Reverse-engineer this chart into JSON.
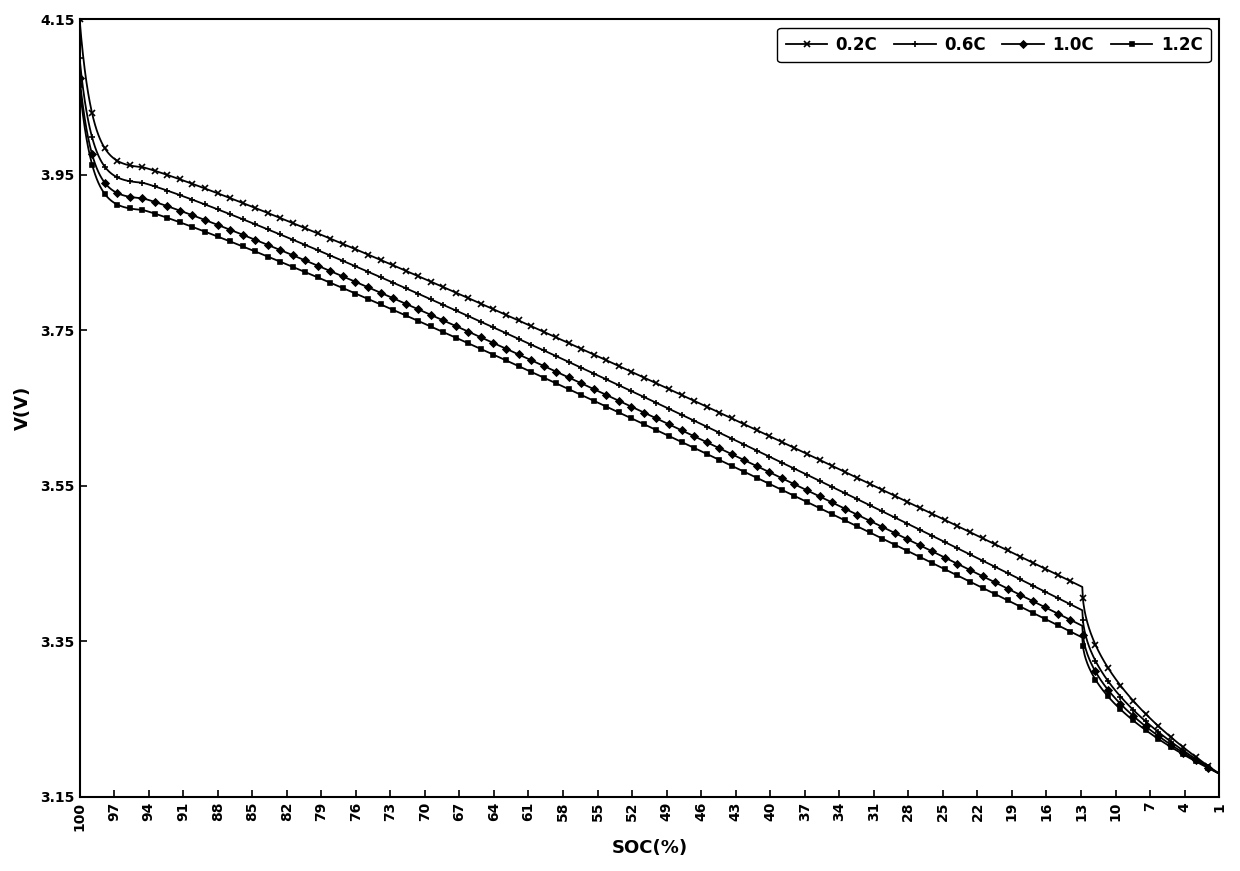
{
  "xlabel": "SOC(%)",
  "ylabel": "V(V)",
  "ylim": [
    3.15,
    4.15
  ],
  "yticks": [
    3.15,
    3.35,
    3.55,
    3.75,
    3.95,
    4.15
  ],
  "xtick_positions": [
    100,
    97,
    94,
    91,
    88,
    85,
    82,
    79,
    76,
    73,
    70,
    67,
    64,
    61,
    58,
    55,
    52,
    49,
    46,
    43,
    40,
    37,
    34,
    31,
    28,
    25,
    22,
    19,
    16,
    13,
    10,
    7,
    4,
    1
  ],
  "series": [
    {
      "label": "0.2C",
      "marker": "x",
      "markersize": 5,
      "v_start": 4.15,
      "v_knee1": 3.96,
      "v_knee2": 3.42,
      "v_end": 3.18,
      "x_knee1": 0.055,
      "x_knee2": 0.88
    },
    {
      "label": "0.6C",
      "marker": "+",
      "markersize": 5,
      "v_start": 4.1,
      "v_knee1": 3.94,
      "v_knee2": 3.39,
      "v_end": 3.18,
      "x_knee1": 0.055,
      "x_knee2": 0.88
    },
    {
      "label": "1.0C",
      "marker": "D",
      "markersize": 3.5,
      "v_start": 4.075,
      "v_knee1": 3.92,
      "v_knee2": 3.37,
      "v_end": 3.18,
      "x_knee1": 0.055,
      "x_knee2": 0.88
    },
    {
      "label": "1.2C",
      "marker": "s",
      "markersize": 3.5,
      "v_start": 4.065,
      "v_knee1": 3.905,
      "v_knee2": 3.355,
      "v_end": 3.18,
      "x_knee1": 0.055,
      "x_knee2": 0.88
    }
  ],
  "line_color": "#000000",
  "background_color": "#ffffff",
  "legend_fontsize": 12,
  "axis_fontsize": 13,
  "tick_fontsize": 10,
  "marker_every": 22,
  "line_width": 1.3
}
